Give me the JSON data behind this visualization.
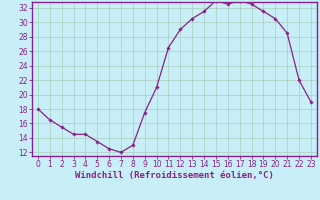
{
  "x": [
    0,
    1,
    2,
    3,
    4,
    5,
    6,
    7,
    8,
    9,
    10,
    11,
    12,
    13,
    14,
    15,
    16,
    17,
    18,
    19,
    20,
    21,
    22,
    23
  ],
  "y": [
    18,
    16.5,
    15.5,
    14.5,
    14.5,
    13.5,
    12.5,
    12.0,
    13.0,
    17.5,
    21.0,
    26.5,
    29.0,
    30.5,
    31.5,
    33.0,
    32.5,
    33.0,
    32.5,
    31.5,
    30.5,
    28.5,
    22.0,
    19.0
  ],
  "line_color": "#882288",
  "marker": "D",
  "markersize": 1.8,
  "linewidth": 0.9,
  "bg_color": "#c8eef8",
  "grid_color": "#aaccbb",
  "xlabel": "Windchill (Refroidissement éolien,°C)",
  "xlabel_fontsize": 6.5,
  "ytick_min": 12,
  "ytick_max": 32,
  "ytick_step": 2,
  "xtick_labels": [
    "0",
    "1",
    "2",
    "3",
    "4",
    "5",
    "6",
    "7",
    "8",
    "9",
    "10",
    "11",
    "12",
    "13",
    "14",
    "15",
    "16",
    "17",
    "18",
    "19",
    "20",
    "21",
    "22",
    "23"
  ],
  "tick_fontsize": 5.5,
  "tick_color": "#882288",
  "spine_color": "#882288"
}
